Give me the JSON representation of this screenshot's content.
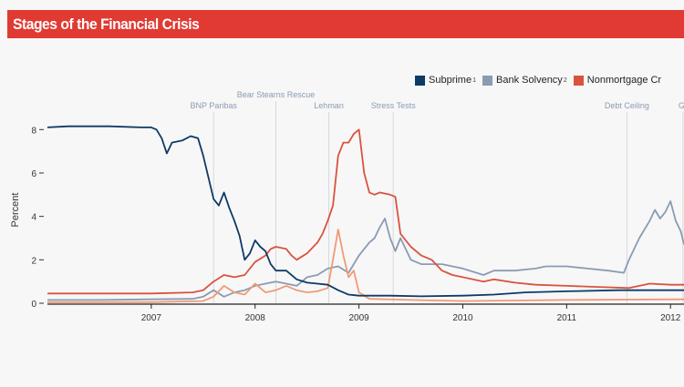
{
  "title": "Stages of the Financial Crisis",
  "colors": {
    "title_bg": "#e03a33",
    "subprime": "#0e3a66",
    "bank": "#8a9bb3",
    "nonmortgage": "#d9533f",
    "fourth": "#f19a76",
    "event_line": "#d6d9de"
  },
  "legend": [
    {
      "label": "Subprime",
      "sup": "1",
      "color": "#0e3a66"
    },
    {
      "label": "Bank Solvency",
      "sup": "2",
      "color": "#8a9bb3"
    },
    {
      "label": "Nonmortgage Cr",
      "sup": "",
      "color": "#d9533f"
    }
  ],
  "chart_data": {
    "type": "line",
    "ylabel": "Percent",
    "ylim": [
      0,
      8.6
    ],
    "yticks": [
      0,
      2,
      4,
      6,
      8
    ],
    "xlim": [
      2006.0,
      2012.13
    ],
    "xticks": [
      "2007",
      "2008",
      "2009",
      "2010",
      "2011",
      "2012"
    ],
    "events": [
      {
        "label": "BNP Paribas",
        "x": 2007.6
      },
      {
        "label": "Bear Stearns Rescue",
        "x": 2008.2
      },
      {
        "label": "Lehman",
        "x": 2008.71
      },
      {
        "label": "Stress Tests",
        "x": 2009.33
      },
      {
        "label": "Debt Ceiling",
        "x": 2011.58
      },
      {
        "label": "Gr",
        "x": 2012.12
      }
    ],
    "series": [
      {
        "name": "Subprime",
        "color": "#0e3a66",
        "points": [
          [
            2006.0,
            8.1
          ],
          [
            2006.2,
            8.15
          ],
          [
            2006.6,
            8.15
          ],
          [
            2006.9,
            8.1
          ],
          [
            2007.0,
            8.1
          ],
          [
            2007.05,
            8.0
          ],
          [
            2007.1,
            7.6
          ],
          [
            2007.15,
            6.9
          ],
          [
            2007.2,
            7.4
          ],
          [
            2007.3,
            7.5
          ],
          [
            2007.38,
            7.7
          ],
          [
            2007.45,
            7.6
          ],
          [
            2007.5,
            6.8
          ],
          [
            2007.55,
            5.8
          ],
          [
            2007.6,
            4.8
          ],
          [
            2007.65,
            4.5
          ],
          [
            2007.7,
            5.1
          ],
          [
            2007.75,
            4.4
          ],
          [
            2007.8,
            3.8
          ],
          [
            2007.85,
            3.1
          ],
          [
            2007.9,
            2.0
          ],
          [
            2007.95,
            2.3
          ],
          [
            2008.0,
            2.9
          ],
          [
            2008.05,
            2.6
          ],
          [
            2008.1,
            2.4
          ],
          [
            2008.15,
            1.8
          ],
          [
            2008.2,
            1.5
          ],
          [
            2008.3,
            1.5
          ],
          [
            2008.4,
            1.1
          ],
          [
            2008.5,
            0.95
          ],
          [
            2008.6,
            0.9
          ],
          [
            2008.7,
            0.85
          ],
          [
            2008.8,
            0.6
          ],
          [
            2008.9,
            0.4
          ],
          [
            2009.0,
            0.35
          ],
          [
            2009.3,
            0.35
          ],
          [
            2009.6,
            0.32
          ],
          [
            2010.0,
            0.35
          ],
          [
            2010.3,
            0.4
          ],
          [
            2010.6,
            0.5
          ],
          [
            2011.0,
            0.55
          ],
          [
            2011.5,
            0.6
          ],
          [
            2012.13,
            0.6
          ]
        ]
      },
      {
        "name": "Bank Solvency",
        "color": "#8a9bb3",
        "points": [
          [
            2006.0,
            0.15
          ],
          [
            2006.5,
            0.15
          ],
          [
            2007.0,
            0.18
          ],
          [
            2007.4,
            0.2
          ],
          [
            2007.5,
            0.3
          ],
          [
            2007.6,
            0.6
          ],
          [
            2007.7,
            0.3
          ],
          [
            2007.8,
            0.5
          ],
          [
            2007.9,
            0.6
          ],
          [
            2008.0,
            0.8
          ],
          [
            2008.1,
            0.9
          ],
          [
            2008.2,
            1.0
          ],
          [
            2008.3,
            0.9
          ],
          [
            2008.4,
            0.8
          ],
          [
            2008.5,
            1.2
          ],
          [
            2008.6,
            1.3
          ],
          [
            2008.7,
            1.6
          ],
          [
            2008.8,
            1.7
          ],
          [
            2008.9,
            1.4
          ],
          [
            2009.0,
            2.2
          ],
          [
            2009.05,
            2.5
          ],
          [
            2009.1,
            2.8
          ],
          [
            2009.15,
            3.0
          ],
          [
            2009.2,
            3.5
          ],
          [
            2009.25,
            3.9
          ],
          [
            2009.3,
            3.0
          ],
          [
            2009.35,
            2.4
          ],
          [
            2009.4,
            3.0
          ],
          [
            2009.45,
            2.5
          ],
          [
            2009.5,
            2.0
          ],
          [
            2009.6,
            1.8
          ],
          [
            2009.8,
            1.8
          ],
          [
            2010.0,
            1.6
          ],
          [
            2010.2,
            1.3
          ],
          [
            2010.3,
            1.5
          ],
          [
            2010.5,
            1.5
          ],
          [
            2010.7,
            1.6
          ],
          [
            2010.8,
            1.7
          ],
          [
            2011.0,
            1.7
          ],
          [
            2011.2,
            1.6
          ],
          [
            2011.4,
            1.5
          ],
          [
            2011.55,
            1.4
          ],
          [
            2011.6,
            2.0
          ],
          [
            2011.7,
            3.0
          ],
          [
            2011.8,
            3.8
          ],
          [
            2011.85,
            4.3
          ],
          [
            2011.9,
            3.9
          ],
          [
            2011.95,
            4.2
          ],
          [
            2012.0,
            4.7
          ],
          [
            2012.05,
            3.8
          ],
          [
            2012.1,
            3.3
          ],
          [
            2012.13,
            2.7
          ]
        ]
      },
      {
        "name": "Nonmortgage Credit",
        "color": "#d9533f",
        "points": [
          [
            2006.0,
            0.45
          ],
          [
            2006.5,
            0.45
          ],
          [
            2007.0,
            0.45
          ],
          [
            2007.4,
            0.5
          ],
          [
            2007.5,
            0.6
          ],
          [
            2007.6,
            1.0
          ],
          [
            2007.7,
            1.3
          ],
          [
            2007.8,
            1.2
          ],
          [
            2007.9,
            1.3
          ],
          [
            2008.0,
            1.9
          ],
          [
            2008.1,
            2.2
          ],
          [
            2008.15,
            2.5
          ],
          [
            2008.2,
            2.6
          ],
          [
            2008.3,
            2.5
          ],
          [
            2008.35,
            2.2
          ],
          [
            2008.4,
            2.0
          ],
          [
            2008.5,
            2.3
          ],
          [
            2008.6,
            2.8
          ],
          [
            2008.65,
            3.2
          ],
          [
            2008.7,
            3.8
          ],
          [
            2008.75,
            4.5
          ],
          [
            2008.8,
            6.8
          ],
          [
            2008.85,
            7.4
          ],
          [
            2008.9,
            7.4
          ],
          [
            2008.95,
            7.8
          ],
          [
            2009.0,
            8.0
          ],
          [
            2009.05,
            6.0
          ],
          [
            2009.1,
            5.1
          ],
          [
            2009.15,
            5.0
          ],
          [
            2009.2,
            5.1
          ],
          [
            2009.3,
            5.0
          ],
          [
            2009.35,
            4.9
          ],
          [
            2009.4,
            3.2
          ],
          [
            2009.5,
            2.6
          ],
          [
            2009.6,
            2.2
          ],
          [
            2009.7,
            2.0
          ],
          [
            2009.8,
            1.5
          ],
          [
            2009.9,
            1.3
          ],
          [
            2010.0,
            1.2
          ],
          [
            2010.2,
            1.0
          ],
          [
            2010.3,
            1.1
          ],
          [
            2010.5,
            0.95
          ],
          [
            2010.7,
            0.85
          ],
          [
            2011.0,
            0.8
          ],
          [
            2011.3,
            0.75
          ],
          [
            2011.6,
            0.7
          ],
          [
            2011.8,
            0.9
          ],
          [
            2012.0,
            0.85
          ],
          [
            2012.13,
            0.85
          ]
        ]
      },
      {
        "name": "",
        "color": "#f19a76",
        "points": [
          [
            2006.0,
            0.05
          ],
          [
            2007.0,
            0.05
          ],
          [
            2007.5,
            0.1
          ],
          [
            2007.6,
            0.3
          ],
          [
            2007.7,
            0.8
          ],
          [
            2007.8,
            0.5
          ],
          [
            2007.9,
            0.4
          ],
          [
            2008.0,
            0.9
          ],
          [
            2008.1,
            0.5
          ],
          [
            2008.2,
            0.6
          ],
          [
            2008.3,
            0.8
          ],
          [
            2008.4,
            0.6
          ],
          [
            2008.5,
            0.5
          ],
          [
            2008.6,
            0.55
          ],
          [
            2008.7,
            0.7
          ],
          [
            2008.75,
            2.0
          ],
          [
            2008.8,
            3.4
          ],
          [
            2008.85,
            2.2
          ],
          [
            2008.9,
            1.2
          ],
          [
            2008.95,
            1.5
          ],
          [
            2009.0,
            0.5
          ],
          [
            2009.1,
            0.2
          ],
          [
            2009.5,
            0.15
          ],
          [
            2010.0,
            0.1
          ],
          [
            2011.0,
            0.15
          ],
          [
            2012.13,
            0.18
          ]
        ]
      }
    ]
  }
}
